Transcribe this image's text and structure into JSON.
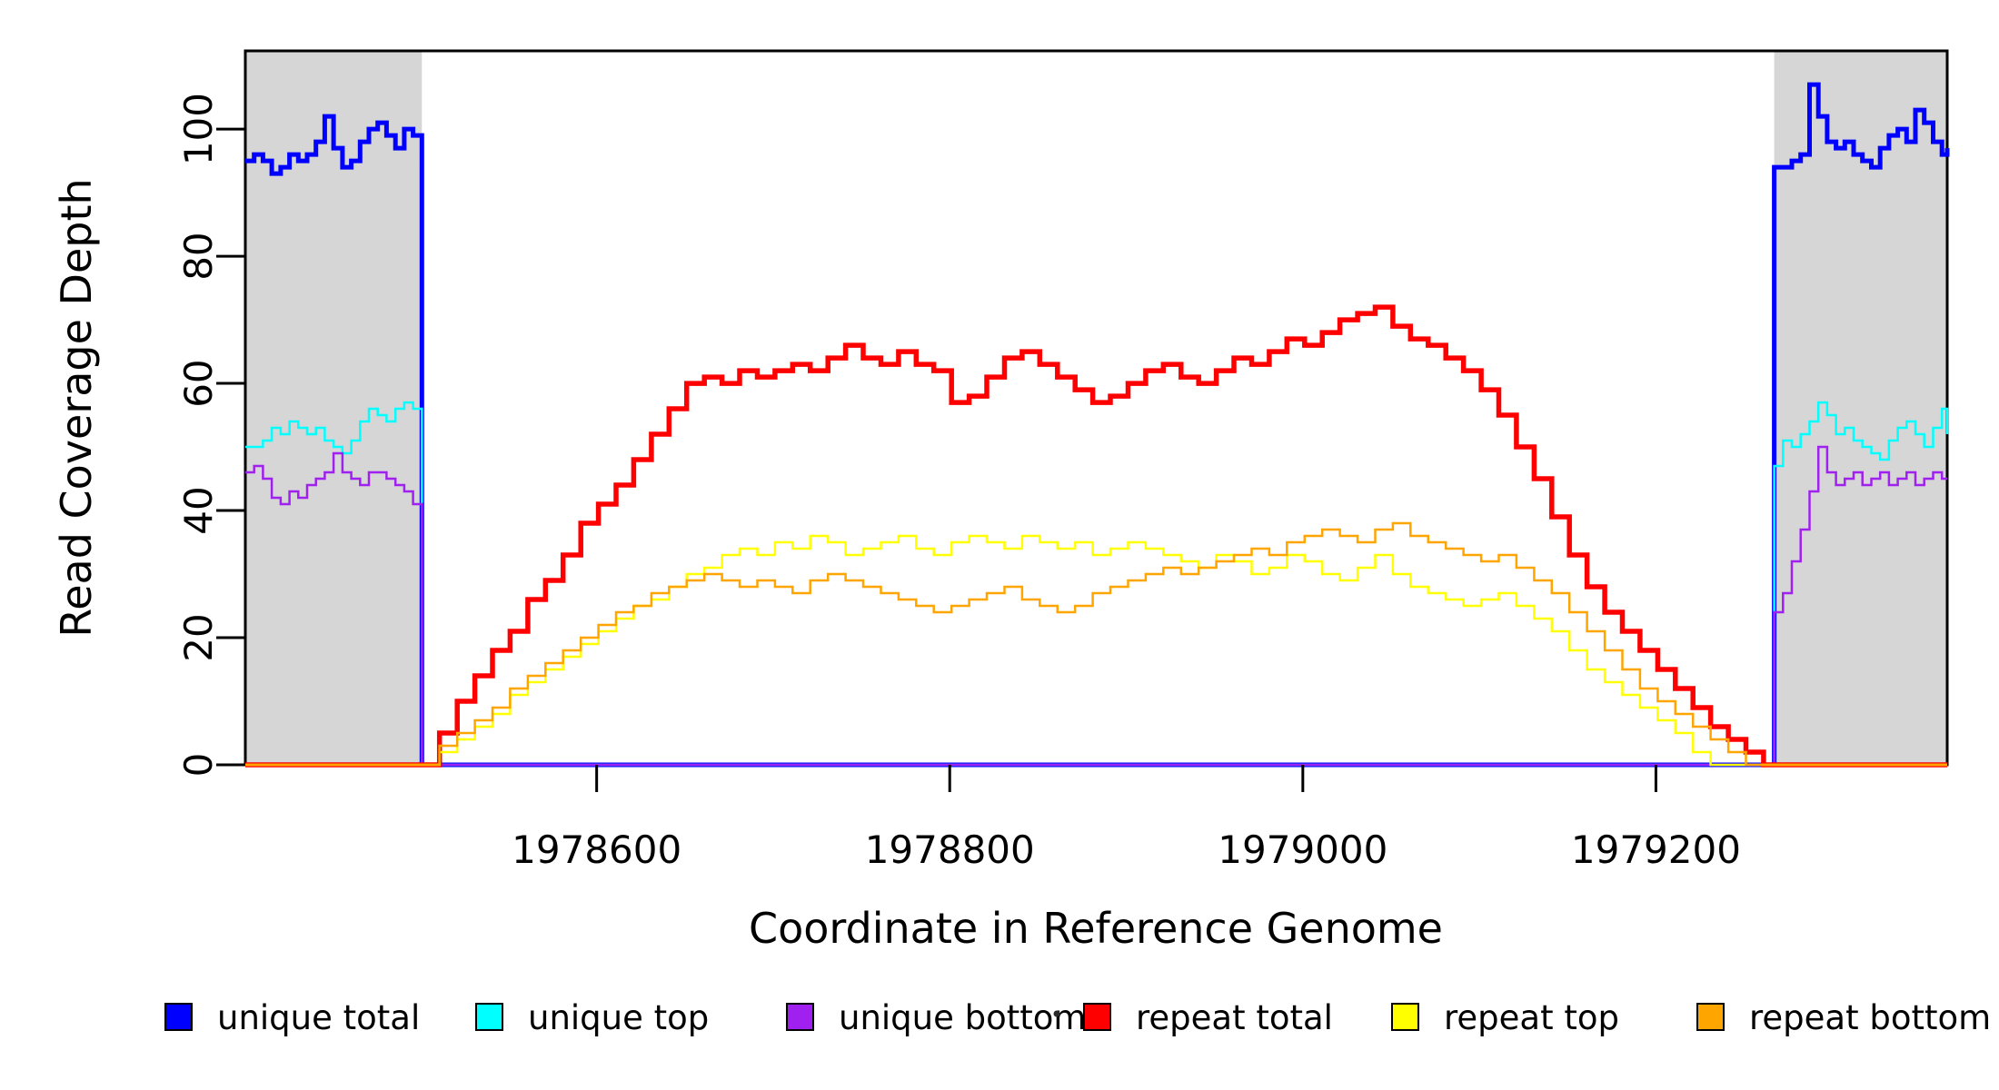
{
  "figure": {
    "background": "#FFFFFF",
    "frame_color": "#000000"
  },
  "axes": {
    "x_title": "Coordinate in Reference Genome",
    "y_title": "Read Coverage Depth"
  },
  "legend": {
    "items": [
      {
        "label": "unique total",
        "color": "#0000FF"
      },
      {
        "label": "unique top",
        "color": "#00FFFF"
      },
      {
        "label": "unique bottom",
        "color": "#A020F0"
      },
      {
        "label": "repeat total",
        "color": "#FF0000"
      },
      {
        "label": "repeat top",
        "color": "#FFFF00"
      },
      {
        "label": "repeat bottom",
        "color": "#FFA500"
      }
    ]
  },
  "chart_data": {
    "type": "line",
    "title": "",
    "xlabel": "Coordinate in Reference Genome",
    "ylabel": "Read Coverage Depth",
    "x_domain": [
      1978401,
      1979365
    ],
    "y_domain": [
      0,
      112.3
    ],
    "grid": false,
    "legend_position": "bottom",
    "x_ticks": [
      {
        "value": 1978600,
        "label": "1978600"
      },
      {
        "value": 1978800,
        "label": "1978800"
      },
      {
        "value": 1979000,
        "label": "1979000"
      },
      {
        "value": 1979200,
        "label": "1979200"
      }
    ],
    "y_ticks": [
      {
        "value": 0,
        "label": "0"
      },
      {
        "value": 20,
        "label": "20"
      },
      {
        "value": 40,
        "label": "40"
      },
      {
        "value": 60,
        "label": "60"
      },
      {
        "value": 80,
        "label": "80"
      },
      {
        "value": 100,
        "label": "100"
      }
    ],
    "shaded_regions": [
      {
        "x_start": 1978401,
        "x_end": 1978501
      },
      {
        "x_start": 1979267,
        "x_end": 1979365
      }
    ],
    "shade_color": "#D6D6D6",
    "series": [
      {
        "name": "unique total",
        "color": "#0000FF",
        "width": 5,
        "segments": [
          {
            "x0": 1978401,
            "dx": 5,
            "y": [
              95,
              96,
              95,
              93,
              94,
              96,
              95,
              96,
              98,
              102,
              97,
              94,
              95,
              98,
              100,
              101,
              99,
              97,
              100,
              99,
              97
            ]
          },
          {
            "points": [
              [
                1978501,
                0
              ],
              [
                1979267,
                0
              ]
            ]
          },
          {
            "x0": 1979267,
            "dx": 5,
            "y": [
              94,
              94,
              95,
              96,
              107,
              102,
              98,
              97,
              98,
              96,
              95,
              94,
              97,
              99,
              100,
              98,
              103,
              101,
              98,
              96,
              97
            ]
          }
        ]
      },
      {
        "name": "unique top",
        "color": "#00FFFF",
        "width": 2.5,
        "segments": [
          {
            "x0": 1978401,
            "dx": 5,
            "y": [
              50,
              50,
              51,
              53,
              52,
              54,
              53,
              52,
              53,
              51,
              50,
              49,
              51,
              54,
              56,
              55,
              54,
              56,
              57,
              56,
              55
            ]
          },
          {
            "points": [
              [
                1978501,
                0
              ],
              [
                1979267,
                0
              ]
            ]
          },
          {
            "x0": 1979267,
            "dx": 5,
            "y": [
              47,
              51,
              50,
              52,
              54,
              57,
              55,
              52,
              53,
              51,
              50,
              49,
              48,
              51,
              53,
              54,
              52,
              50,
              53,
              56,
              52
            ]
          }
        ]
      },
      {
        "name": "unique bottom",
        "color": "#A020F0",
        "width": 2.5,
        "segments": [
          {
            "x0": 1978401,
            "dx": 5,
            "y": [
              46,
              47,
              45,
              42,
              41,
              43,
              42,
              44,
              45,
              46,
              49,
              46,
              45,
              44,
              46,
              46,
              45,
              44,
              43,
              41,
              40
            ]
          },
          {
            "points": [
              [
                1978501,
                0
              ],
              [
                1979267,
                0
              ]
            ]
          },
          {
            "x0": 1979267,
            "dx": 5,
            "y": [
              24,
              27,
              32,
              37,
              43,
              50,
              46,
              44,
              45,
              46,
              44,
              45,
              46,
              44,
              45,
              46,
              44,
              45,
              46,
              45,
              45
            ]
          }
        ]
      },
      {
        "name": "repeat total",
        "color": "#FF0000",
        "width": 5.5,
        "segments": [
          {
            "points": [
              [
                1978401,
                0
              ],
              [
                1978501,
                0
              ]
            ]
          },
          {
            "x0": 1978501,
            "dx": 10,
            "y": [
              0,
              5,
              10,
              14,
              18,
              21,
              26,
              29,
              33,
              38,
              41,
              44,
              48,
              52,
              56,
              60,
              61,
              60,
              62,
              61,
              62,
              63,
              62,
              64,
              66,
              64,
              63,
              65,
              63,
              62,
              57,
              58,
              61,
              64,
              65,
              63,
              61,
              59,
              57,
              58,
              60,
              62,
              63,
              61,
              60,
              62,
              64,
              63,
              65,
              67,
              66,
              68,
              70,
              71,
              72,
              69,
              67,
              66,
              64,
              62,
              59,
              55,
              50,
              45,
              39,
              33,
              28,
              24,
              21,
              18,
              15,
              12,
              9,
              6,
              4,
              2,
              0
            ]
          },
          {
            "points": [
              [
                1979261,
                0
              ],
              [
                1979365,
                0
              ]
            ]
          }
        ]
      },
      {
        "name": "repeat top",
        "color": "#FFFF00",
        "width": 2.5,
        "segments": [
          {
            "points": [
              [
                1978401,
                0
              ],
              [
                1978501,
                0
              ]
            ]
          },
          {
            "x0": 1978501,
            "dx": 10,
            "y": [
              0,
              2,
              4,
              6,
              8,
              11,
              13,
              15,
              17,
              19,
              21,
              23,
              25,
              26,
              28,
              30,
              31,
              33,
              34,
              33,
              35,
              34,
              36,
              35,
              33,
              34,
              35,
              36,
              34,
              33,
              35,
              36,
              35,
              34,
              36,
              35,
              34,
              35,
              33,
              34,
              35,
              34,
              33,
              32,
              31,
              33,
              32,
              30,
              31,
              33,
              32,
              30,
              29,
              31,
              33,
              30,
              28,
              27,
              26,
              25,
              26,
              27,
              25,
              23,
              21,
              18,
              15,
              13,
              11,
              9,
              7,
              5,
              2,
              0
            ]
          },
          {
            "points": [
              [
                1979231,
                0
              ],
              [
                1979365,
                0
              ]
            ]
          }
        ]
      },
      {
        "name": "repeat bottom",
        "color": "#FFA500",
        "width": 2.5,
        "segments": [
          {
            "points": [
              [
                1978401,
                0
              ],
              [
                1978501,
                0
              ]
            ]
          },
          {
            "x0": 1978501,
            "dx": 10,
            "y": [
              0,
              3,
              5,
              7,
              9,
              12,
              14,
              16,
              18,
              20,
              22,
              24,
              25,
              27,
              28,
              29,
              30,
              29,
              28,
              29,
              28,
              27,
              29,
              30,
              29,
              28,
              27,
              26,
              25,
              24,
              25,
              26,
              27,
              28,
              26,
              25,
              24,
              25,
              27,
              28,
              29,
              30,
              31,
              30,
              31,
              32,
              33,
              34,
              33,
              35,
              36,
              37,
              36,
              35,
              37,
              38,
              36,
              35,
              34,
              33,
              32,
              33,
              31,
              29,
              27,
              24,
              21,
              18,
              15,
              12,
              10,
              8,
              6,
              4,
              2,
              0
            ]
          },
          {
            "points": [
              [
                1979251,
                0
              ],
              [
                1979365,
                0
              ]
            ]
          }
        ]
      }
    ]
  }
}
